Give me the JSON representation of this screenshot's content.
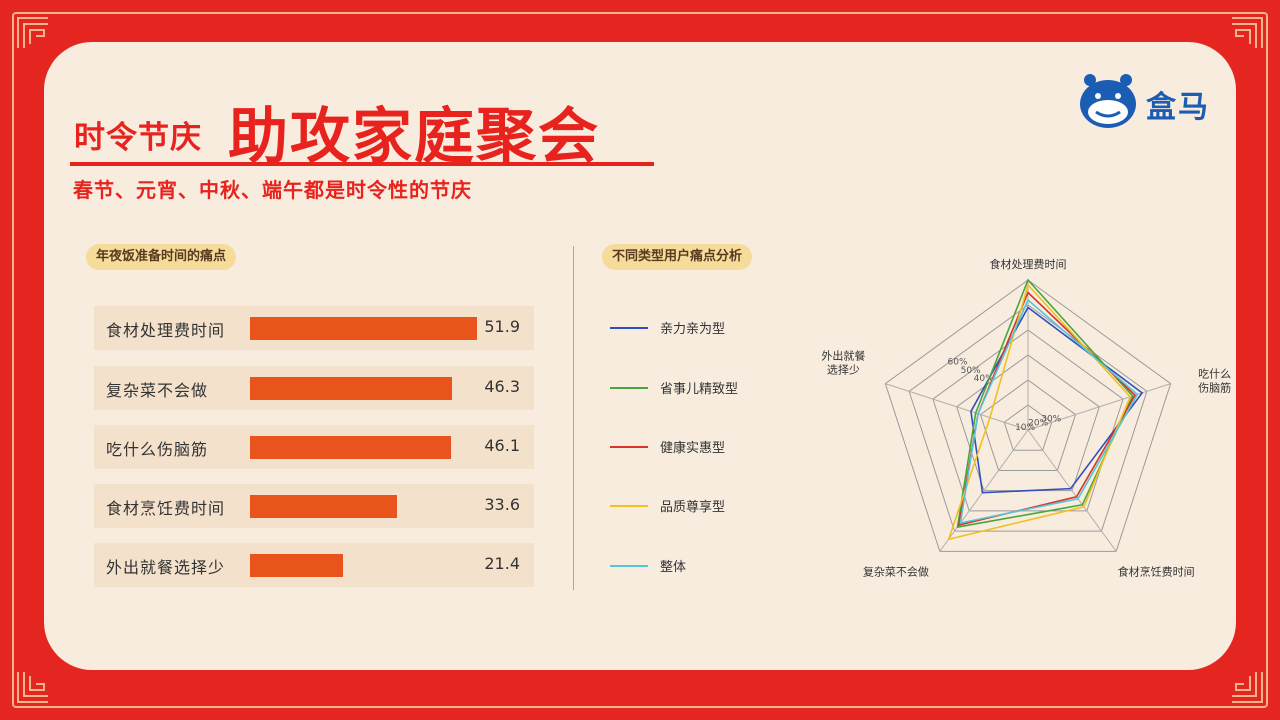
{
  "header": {
    "title_small": "时令节庆",
    "title_big": "助攻家庭聚会",
    "subtitle": "春节、元宵、中秋、端午都是时令性的节庆"
  },
  "logo": {
    "text": "盒马",
    "icon": "hippo-logo-icon"
  },
  "colors": {
    "background": "#e52620",
    "panel": "#f8ecdf",
    "accent": "#e8231e",
    "bar": "#e8541c"
  },
  "chart_data": [
    {
      "type": "bar",
      "title": "年夜饭准备时间的痛点",
      "categories": [
        "食材处理费时间",
        "复杂菜不会做",
        "吃什么伤脑筋",
        "食材烹饪费时间",
        "外出就餐选择少"
      ],
      "values": [
        51.9,
        46.3,
        46.1,
        33.6,
        21.4
      ],
      "value_labels": [
        "51.9",
        "46.3",
        "46.1",
        "33.6",
        "21.4"
      ],
      "orientation": "horizontal",
      "xlim": [
        0,
        60
      ]
    },
    {
      "type": "radar",
      "title": "不同类型用户痛点分析",
      "axes": [
        "食材处理费时间",
        "吃什么伤脑筋",
        "食材烹饪费时间",
        "复杂菜不会做",
        "外出就餐选择少"
      ],
      "axis_labels": [
        "食材处理费时间",
        "吃什么\n伤脑筋",
        "食材烹饪费时间",
        "复杂菜不会做",
        "外出就餐\n选择少"
      ],
      "rlim": [
        0,
        60
      ],
      "ticks": [
        "10%",
        "20%",
        "30%",
        "40%",
        "50%",
        "60%"
      ],
      "legend_position": "left",
      "series": [
        {
          "name": "亲力亲为型",
          "color": "#2f4fbf",
          "values": [
            49,
            48,
            29,
            31,
            24
          ]
        },
        {
          "name": "省事儿精致型",
          "color": "#4aa63c",
          "values": [
            60,
            44,
            37,
            48,
            22
          ]
        },
        {
          "name": "健康实惠型",
          "color": "#d8342a",
          "values": [
            55,
            45,
            33,
            47,
            21
          ]
        },
        {
          "name": "品质尊享型",
          "color": "#f0c020",
          "values": [
            58,
            43,
            38,
            54,
            16
          ]
        },
        {
          "name": "整体",
          "color": "#53c6d8",
          "values": [
            52,
            46,
            34,
            46,
            21
          ]
        }
      ]
    }
  ]
}
